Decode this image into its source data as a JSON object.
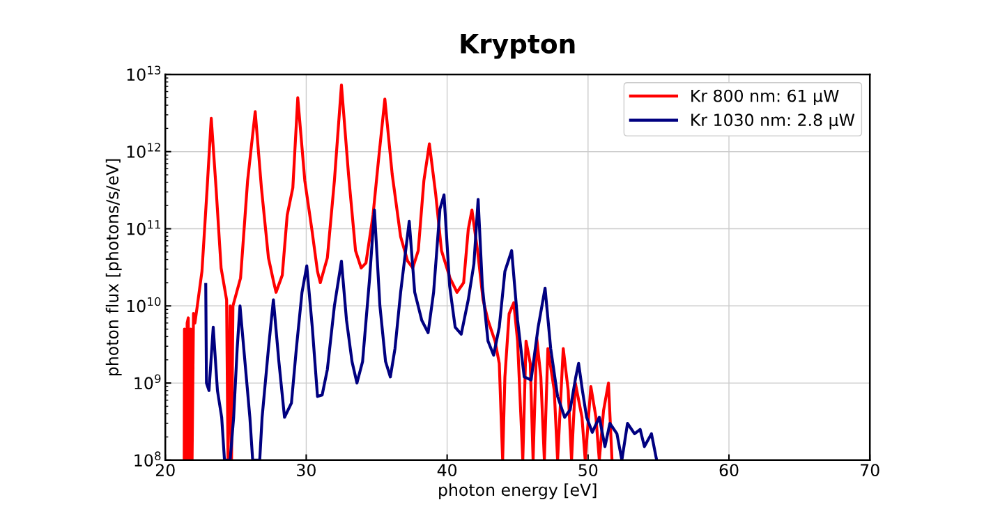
{
  "chart_data": {
    "type": "line",
    "title": "Krypton",
    "xlabel": "photon energy [eV]",
    "ylabel": "photon flux [photons/s/eV]",
    "log": "y",
    "grid": true,
    "legend": "top right",
    "marker": "none",
    "line_style": "solid",
    "xlim": [
      20,
      70
    ],
    "xticks": [
      20,
      30,
      40,
      50,
      60,
      70
    ],
    "ylim": [
      100000000.0,
      10000000000000.0
    ],
    "yticks": [
      {
        "value": 100000000.0,
        "label": "10$^{8}$"
      },
      {
        "value": 1000000000.0,
        "label": "10$^{9}$"
      },
      {
        "value": 10000000000.0,
        "label": "10$^{10}$"
      },
      {
        "value": 100000000000.0,
        "label": "10$^{11}$"
      },
      {
        "value": 1000000000000.0,
        "label": "10$^{12}$"
      },
      {
        "value": 10000000000000.0,
        "label": "10$^{13}$"
      }
    ],
    "series": [
      {
        "name": "Kr 800 nm: 61 µW",
        "color": "#ff0000",
        "x": [
          21.34,
          21.36,
          21.5,
          21.55,
          21.63,
          21.7,
          21.8,
          21.9,
          22.0,
          22.1,
          22.27,
          22.6,
          22.97,
          23.26,
          23.6,
          23.96,
          24.35,
          24.45,
          24.6,
          24.7,
          24.8,
          25.34,
          25.84,
          26.38,
          26.82,
          27.32,
          27.7,
          27.86,
          28.3,
          28.65,
          29.05,
          29.4,
          29.9,
          30.4,
          30.8,
          31.0,
          31.5,
          32.0,
          32.5,
          33.0,
          33.5,
          33.9,
          34.24,
          34.74,
          35.13,
          35.58,
          36.1,
          36.7,
          37.2,
          37.56,
          37.95,
          38.35,
          38.74,
          39.19,
          39.6,
          40.2,
          40.7,
          41.17,
          41.5,
          41.76,
          42.16,
          42.55,
          42.9,
          43.4,
          43.7,
          43.94,
          44.1,
          44.4,
          44.73,
          45.0,
          45.37,
          45.6,
          45.9,
          46.1,
          46.36,
          46.65,
          46.9,
          47.15,
          47.6,
          47.84,
          48.24,
          48.59,
          48.83,
          49.1,
          49.57,
          49.8,
          50.2,
          50.56,
          50.8,
          51.1,
          51.45,
          51.7
        ],
        "values": [
          100000000.0,
          5000000000.0,
          100000000.0,
          6000000000.0,
          7000000000.0,
          100000000.0,
          5000000000.0,
          100000000.0,
          8000000000.0,
          6000000000.0,
          10000000000.0,
          28000000000.0,
          340000000000.0,
          2700000000000.0,
          340000000000.0,
          31000000000.0,
          12000000000.0,
          100000000.0,
          10000000000.0,
          100000000.0,
          10000000000.0,
          23000000000.0,
          420000000000.0,
          3300000000000.0,
          340000000000.0,
          42000000000.0,
          20000000000.0,
          15000000000.0,
          25000000000.0,
          150000000000.0,
          340000000000.0,
          5000000000000.0,
          420000000000.0,
          98000000000.0,
          28000000000.0,
          20000000000.0,
          42000000000.0,
          420000000000.0,
          7300000000000.0,
          510000000000.0,
          52000000000.0,
          31000000000.0,
          36000000000.0,
          150000000000.0,
          780000000000.0,
          4800000000000.0,
          510000000000.0,
          79000000000.0,
          38000000000.0,
          31000000000.0,
          52000000000.0,
          420000000000.0,
          1260000000000.0,
          280000000000.0,
          52000000000.0,
          23000000000.0,
          15000000000.0,
          20000000000.0,
          98000000000.0,
          175000000000.0,
          52000000000.0,
          12000000000.0,
          6500000000.0,
          3500000000.0,
          1800000000.0,
          100000000.0,
          1200000000.0,
          7900000000.0,
          11000000000.0,
          3500000000.0,
          100000000.0,
          3500000000.0,
          1800000000.0,
          100000000.0,
          3800000000.0,
          1200000000.0,
          100000000.0,
          2800000000.0,
          810000000.0,
          100000000.0,
          2800000000.0,
          810000000.0,
          100000000.0,
          1000000000.0,
          360000000.0,
          100000000.0,
          900000000.0,
          360000000.0,
          100000000.0,
          440000000.0,
          1000000000.0,
          100000000.0
        ]
      },
      {
        "name": "Kr 1030 nm: 2.8 µW",
        "color": "#000080",
        "x": [
          22.87,
          22.92,
          23.1,
          23.4,
          23.7,
          24.0,
          24.2,
          24.6,
          24.85,
          25.1,
          25.3,
          25.7,
          26.0,
          26.2,
          26.7,
          26.87,
          27.32,
          27.67,
          28.06,
          28.46,
          28.95,
          29.3,
          29.7,
          30.04,
          30.43,
          30.8,
          31.13,
          31.5,
          32.0,
          32.5,
          32.86,
          33.25,
          33.6,
          34.0,
          34.5,
          34.84,
          35.23,
          35.63,
          35.97,
          36.3,
          36.7,
          37.31,
          37.7,
          38.2,
          38.65,
          39.04,
          39.49,
          39.78,
          40.18,
          40.57,
          41.0,
          41.5,
          41.9,
          42.2,
          42.5,
          42.9,
          43.3,
          43.7,
          44.1,
          44.58,
          45.0,
          45.47,
          45.96,
          46.46,
          46.95,
          47.35,
          47.84,
          48.34,
          48.73,
          49.13,
          49.33,
          49.6,
          49.9,
          50.3,
          50.8,
          51.2,
          51.55,
          52.05,
          52.4,
          52.8,
          53.3,
          53.7,
          54.0,
          54.5,
          54.87
        ],
        "values": [
          19000000000.0,
          1000000000.0,
          800000000.0,
          5300000000.0,
          800000000.0,
          360000000.0,
          100000000.0,
          100000000.0,
          360000000.0,
          2800000000.0,
          10000000000.0,
          1500000000.0,
          360000000.0,
          100000000.0,
          100000000.0,
          360000000.0,
          2800000000.0,
          12000000000.0,
          1900000000.0,
          360000000.0,
          550000000.0,
          2800000000.0,
          15000000000.0,
          33000000000.0,
          5300000000.0,
          670000000.0,
          700000000.0,
          1500000000.0,
          10000000000.0,
          38000000000.0,
          6500000000.0,
          1900000000.0,
          1000000000.0,
          1900000000.0,
          23000000000.0,
          175000000000.0,
          10000000000.0,
          1900000000.0,
          1200000000.0,
          2800000000.0,
          15000000000.0,
          125000000000.0,
          15000000000.0,
          6500000000.0,
          4500000000.0,
          15000000000.0,
          180000000000.0,
          275000000000.0,
          18000000000.0,
          5300000000.0,
          4300000000.0,
          12000000000.0,
          35000000000.0,
          240000000000.0,
          18000000000.0,
          3500000000.0,
          2300000000.0,
          5300000000.0,
          28000000000.0,
          52000000000.0,
          6500000000.0,
          1200000000.0,
          1100000000.0,
          5300000000.0,
          17000000000.0,
          2800000000.0,
          670000000.0,
          360000000.0,
          450000000.0,
          1200000000.0,
          1800000000.0,
          800000000.0,
          360000000.0,
          230000000.0,
          360000000.0,
          150000000.0,
          300000000.0,
          220000000.0,
          100000000.0,
          300000000.0,
          220000000.0,
          250000000.0,
          150000000.0,
          220000000.0,
          100000000.0
        ]
      }
    ]
  }
}
